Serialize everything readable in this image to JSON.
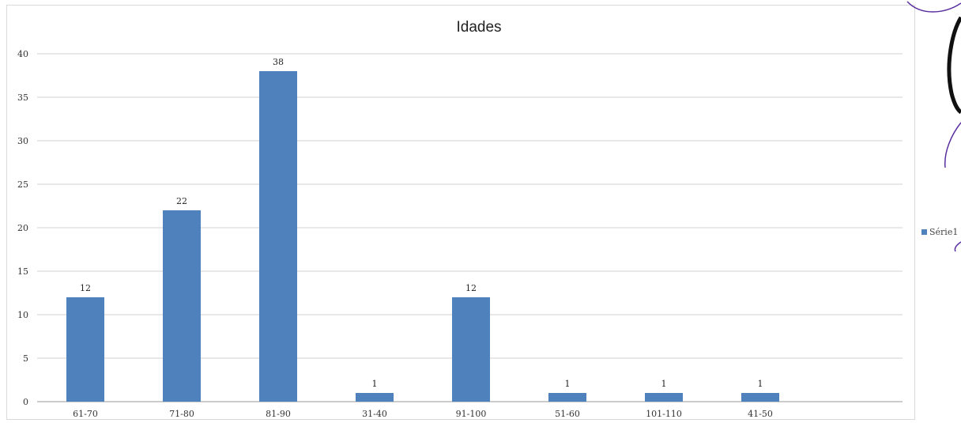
{
  "chart_data": {
    "type": "bar",
    "title": "Idades",
    "categories": [
      "61-70",
      "71-80",
      "81-90",
      "31-40",
      "91-100",
      "51-60",
      "101-110",
      "41-50"
    ],
    "series": [
      {
        "name": "Série1",
        "values": [
          12,
          22,
          38,
          1,
          12,
          1,
          1,
          1
        ],
        "color": "#4f81bd"
      }
    ],
    "yticks": [
      "0",
      "5",
      "10",
      "15",
      "20",
      "25",
      "30",
      "35",
      "40"
    ],
    "ylim": [
      0,
      40
    ],
    "grid": true,
    "legend": "right",
    "data_labels": true
  }
}
